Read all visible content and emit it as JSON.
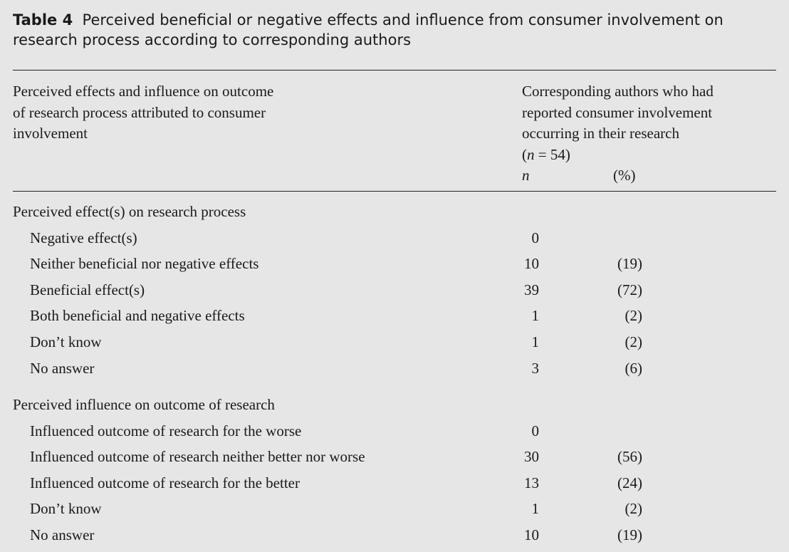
{
  "title": {
    "label": "Table 4",
    "text": "Perceived beneficial or negative effects and influence from consumer involvement on research process according to corresponding authors"
  },
  "header": {
    "left": [
      "Perceived effects and influence on outcome",
      "of research process attributed to consumer",
      "involvement"
    ],
    "right": [
      "Corresponding authors who had",
      "reported consumer involvement",
      "occurring in their research"
    ],
    "n_total": "(n = 54)",
    "col_n": "n",
    "col_pct": "(%)"
  },
  "sections": [
    {
      "label": "Perceived effect(s) on research process",
      "rows": [
        {
          "label": "Negative effect(s)",
          "n": "0",
          "pct": ""
        },
        {
          "label": "Neither beneficial nor negative effects",
          "n": "10",
          "pct": "(19)"
        },
        {
          "label": "Beneficial effect(s)",
          "n": "39",
          "pct": "(72)"
        },
        {
          "label": "Both beneficial and negative effects",
          "n": "1",
          "pct": "(2)"
        },
        {
          "label": "Don’t know",
          "n": "1",
          "pct": "(2)"
        },
        {
          "label": "No answer",
          "n": "3",
          "pct": "(6)"
        }
      ]
    },
    {
      "label": "Perceived influence on outcome of research",
      "rows": [
        {
          "label": "Influenced outcome of research for the worse",
          "n": "0",
          "pct": ""
        },
        {
          "label": "Influenced outcome of research neither better nor worse",
          "n": "30",
          "pct": "(56)"
        },
        {
          "label": "Influenced outcome of research for the better",
          "n": "13",
          "pct": "(24)"
        },
        {
          "label": "Don’t know",
          "n": "1",
          "pct": "(2)"
        },
        {
          "label": "No answer",
          "n": "10",
          "pct": "(19)"
        }
      ]
    }
  ]
}
